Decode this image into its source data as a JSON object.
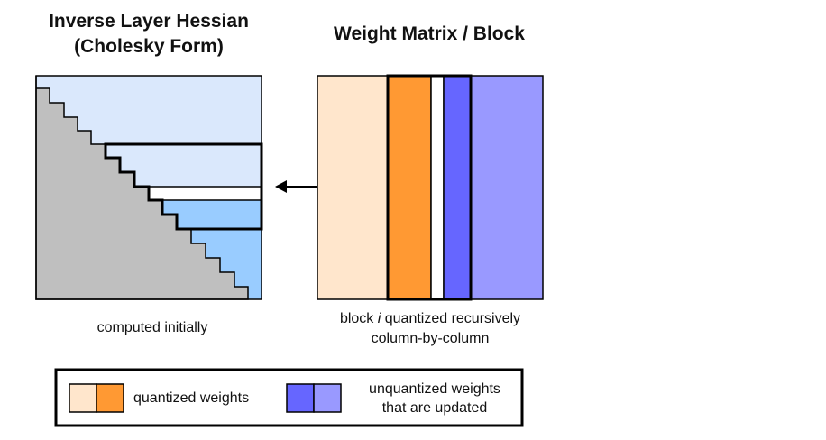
{
  "hessian": {
    "title_line1": "Inverse Layer Hessian",
    "title_line2": "(Cholesky Form)",
    "caption": "computed initially"
  },
  "weights": {
    "title": "Weight Matrix / Block",
    "caption_pre": "block ",
    "caption_italic": "i",
    "caption_post": " quantized recursively",
    "caption_line2": "column-by-column"
  },
  "legend": {
    "quantized_label": "quantized weights",
    "unquantized_label_line1": "unquantized weights",
    "unquantized_label_line2": "that are updated"
  },
  "colors": {
    "hessian_fill": "#dae8fc",
    "hessian_block": "#99ccff",
    "lower_triangle": "#bfbfbf",
    "quantized_light": "#ffe6cc",
    "quantized_dark": "#ff9933",
    "unquantized_dark": "#6666ff",
    "unquantized_light": "#9999ff"
  }
}
